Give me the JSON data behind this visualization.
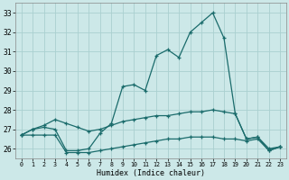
{
  "xlabel": "Humidex (Indice chaleur)",
  "bg_color": "#cce8e8",
  "line_color": "#1a6b6b",
  "grid_color": "#aad0d0",
  "xlim": [
    -0.5,
    23.5
  ],
  "ylim": [
    25.5,
    33.5
  ],
  "yticks": [
    26,
    27,
    28,
    29,
    30,
    31,
    32,
    33
  ],
  "xticks": [
    0,
    1,
    2,
    3,
    4,
    5,
    6,
    7,
    8,
    9,
    10,
    11,
    12,
    13,
    14,
    15,
    16,
    17,
    18,
    19,
    20,
    21,
    22,
    23
  ],
  "line1_x": [
    0,
    1,
    2,
    3,
    4,
    5,
    6,
    7,
    8,
    9,
    10,
    11,
    12,
    13,
    14,
    15,
    16,
    17,
    18,
    19,
    20,
    21,
    22,
    23
  ],
  "line1_y": [
    26.7,
    27.0,
    27.1,
    27.0,
    25.9,
    25.9,
    26.0,
    26.8,
    27.3,
    29.2,
    29.3,
    29.0,
    30.8,
    31.1,
    30.7,
    32.0,
    32.5,
    33.0,
    31.7,
    27.8,
    26.5,
    26.6,
    25.9,
    26.1
  ],
  "line2_x": [
    0,
    1,
    2,
    3,
    4,
    5,
    6,
    7,
    8,
    9,
    10,
    11,
    12,
    13,
    14,
    15,
    16,
    17,
    18,
    19,
    20,
    21,
    22,
    23
  ],
  "line2_y": [
    26.7,
    27.0,
    27.2,
    27.5,
    27.3,
    27.1,
    26.9,
    27.0,
    27.2,
    27.4,
    27.5,
    27.6,
    27.7,
    27.7,
    27.8,
    27.9,
    27.9,
    28.0,
    27.9,
    27.8,
    26.5,
    26.6,
    26.0,
    26.1
  ],
  "line3_x": [
    0,
    1,
    2,
    3,
    4,
    5,
    6,
    7,
    8,
    9,
    10,
    11,
    12,
    13,
    14,
    15,
    16,
    17,
    18,
    19,
    20,
    21,
    22,
    23
  ],
  "line3_y": [
    26.7,
    26.7,
    26.7,
    26.7,
    25.8,
    25.8,
    25.8,
    25.9,
    26.0,
    26.1,
    26.2,
    26.3,
    26.4,
    26.5,
    26.5,
    26.6,
    26.6,
    26.6,
    26.5,
    26.5,
    26.4,
    26.5,
    25.9,
    26.1
  ]
}
